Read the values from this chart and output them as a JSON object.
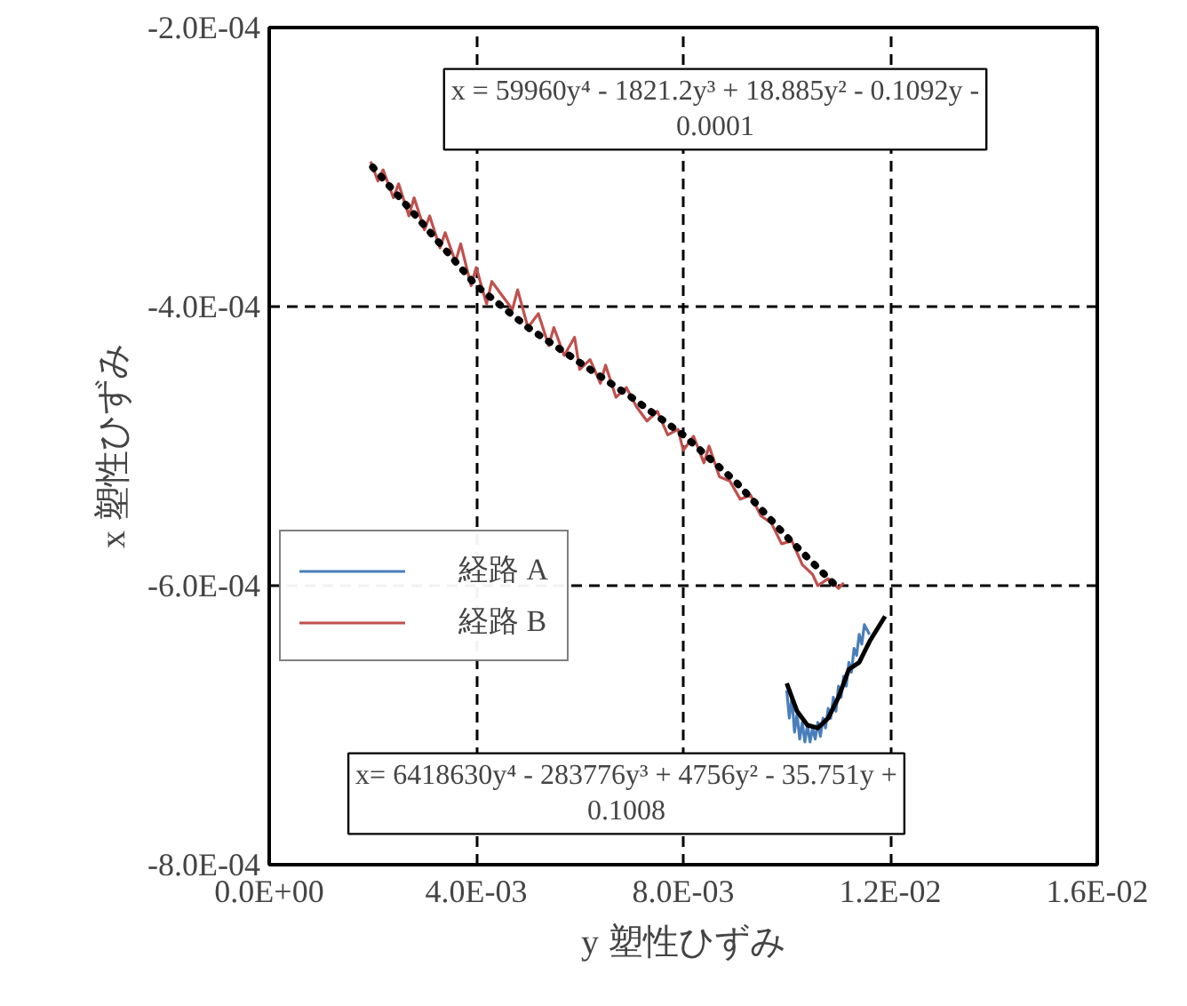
{
  "chart_data": {
    "type": "line",
    "xlabel": "y 塑性ひずみ",
    "ylabel": "x 塑性ひずみ",
    "xlim": [
      0,
      0.016
    ],
    "xticks": [
      {
        "value": 0,
        "label": "0.0E+00"
      },
      {
        "value": 0.004,
        "label": "4.0E-03"
      },
      {
        "value": 0.008,
        "label": "8.0E-03"
      },
      {
        "value": 0.012,
        "label": "1.2E-02"
      },
      {
        "value": 0.016,
        "label": "1.6E-02"
      }
    ],
    "ylim": [
      -0.0008,
      -0.0002
    ],
    "yticks": [
      {
        "value": -0.0008,
        "label": "-8.0E-04"
      },
      {
        "value": -0.0006,
        "label": "-6.0E-04"
      },
      {
        "value": -0.0004,
        "label": "-4.0E-04"
      },
      {
        "value": -0.0002,
        "label": "-2.0E-04"
      }
    ],
    "grid": true,
    "legend": "left",
    "annotations": [
      "x = 59960y⁴ - 1821.2y³ + 18.885y² - 0.1092y - 0.0001",
      "x= 6418630y⁴ - 283776y³ + 4756y² - 35.751y + 0.1008"
    ],
    "series": [
      {
        "name": "経路 A",
        "color": "#4a7ebb",
        "x": [
          0.01,
          0.01005,
          0.0101,
          0.01015,
          0.0102,
          0.01025,
          0.0103,
          0.01035,
          0.0104,
          0.01045,
          0.0105,
          0.01055,
          0.0106,
          0.01065,
          0.0107,
          0.01075,
          0.0108,
          0.01085,
          0.0109,
          0.01095,
          0.011,
          0.01105,
          0.0111,
          0.01115,
          0.0112,
          0.01125,
          0.0113,
          0.01135,
          0.0114,
          0.01145,
          0.0115,
          0.0116
        ],
        "values": [
          -0.000675,
          -0.000695,
          -0.00068,
          -0.000705,
          -0.000692,
          -0.00071,
          -0.000698,
          -0.000712,
          -0.0007,
          -0.000712,
          -0.000702,
          -0.00071,
          -0.000698,
          -0.000708,
          -0.000695,
          -0.000702,
          -0.000688,
          -0.000695,
          -0.00068,
          -0.00069,
          -0.000672,
          -0.00068,
          -0.000665,
          -0.000672,
          -0.000655,
          -0.000662,
          -0.000645,
          -0.00065,
          -0.000635,
          -0.000642,
          -0.000628,
          -0.000635
        ]
      },
      {
        "name": "経路 B",
        "color": "#c0504d",
        "x": [
          0.00196,
          0.0021,
          0.0022,
          0.0024,
          0.0025,
          0.0027,
          0.0028,
          0.003,
          0.0031,
          0.0033,
          0.0034,
          0.0036,
          0.0037,
          0.0039,
          0.004,
          0.0042,
          0.0043,
          0.0045,
          0.0047,
          0.0048,
          0.005,
          0.0052,
          0.0054,
          0.0055,
          0.0057,
          0.0059,
          0.006,
          0.0062,
          0.0064,
          0.0065,
          0.0067,
          0.0069,
          0.0071,
          0.0073,
          0.0075,
          0.0077,
          0.0079,
          0.008,
          0.0082,
          0.0084,
          0.0085,
          0.0087,
          0.0089,
          0.0091,
          0.0093,
          0.0095,
          0.0097,
          0.0099,
          0.0101,
          0.0103,
          0.0105,
          0.0106,
          0.0108,
          0.011,
          0.0111
        ],
        "values": [
          -0.000296,
          -0.00031,
          -0.000302,
          -0.000322,
          -0.000312,
          -0.000335,
          -0.000322,
          -0.000345,
          -0.000335,
          -0.000358,
          -0.000347,
          -0.000368,
          -0.000355,
          -0.000385,
          -0.000372,
          -0.000398,
          -0.000382,
          -0.000392,
          -0.000402,
          -0.000388,
          -0.000415,
          -0.000405,
          -0.000428,
          -0.000415,
          -0.000435,
          -0.000422,
          -0.000445,
          -0.000438,
          -0.000455,
          -0.000442,
          -0.000465,
          -0.000458,
          -0.000472,
          -0.000482,
          -0.000475,
          -0.000492,
          -0.000488,
          -0.000503,
          -0.000493,
          -0.000512,
          -0.0005,
          -0.000522,
          -0.000525,
          -0.000538,
          -0.000535,
          -0.00055,
          -0.000555,
          -0.00057,
          -0.000568,
          -0.000585,
          -0.000592,
          -0.0006,
          -0.000595,
          -0.000602,
          -0.000598
        ]
      },
      {
        "color": "#000000",
        "line_style": "dotted",
        "x": [
          0.002,
          0.003,
          0.004,
          0.005,
          0.006,
          0.007,
          0.008,
          0.009,
          0.01,
          0.011
        ],
        "values": [
          -0.0003,
          -0.000342,
          -0.000385,
          -0.000415,
          -0.00044,
          -0.000465,
          -0.000492,
          -0.000525,
          -0.000565,
          -0.000602
        ]
      },
      {
        "color": "#000000",
        "line_style": "solid",
        "x": [
          0.01,
          0.0102,
          0.0104,
          0.0106,
          0.0108,
          0.011,
          0.0112,
          0.0114,
          0.0116,
          0.0119
        ],
        "values": [
          -0.00067,
          -0.00069,
          -0.0007,
          -0.000702,
          -0.000695,
          -0.00068,
          -0.00066,
          -0.000655,
          -0.00064,
          -0.000622
        ]
      }
    ]
  }
}
